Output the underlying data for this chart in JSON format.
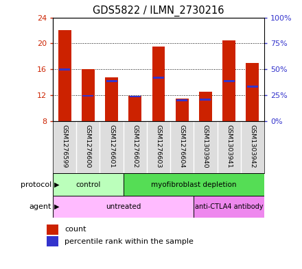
{
  "title": "GDS5822 / ILMN_2730216",
  "samples": [
    "GSM1276599",
    "GSM1276600",
    "GSM1276601",
    "GSM1276602",
    "GSM1276603",
    "GSM1276604",
    "GSM1303940",
    "GSM1303941",
    "GSM1303942"
  ],
  "count_values": [
    22.0,
    16.0,
    14.8,
    11.9,
    19.5,
    11.5,
    12.5,
    20.5,
    17.0
  ],
  "percentile_values": [
    16.0,
    11.9,
    14.2,
    11.8,
    14.7,
    11.2,
    11.3,
    14.2,
    13.3
  ],
  "bar_bottom": 8,
  "ylim": [
    8,
    24
  ],
  "yticks_left": [
    8,
    12,
    16,
    20,
    24
  ],
  "yticks_right": [
    0,
    25,
    50,
    75,
    100
  ],
  "right_ylim": [
    0,
    100
  ],
  "bar_color": "#cc2200",
  "blue_color": "#3333cc",
  "protocol_groups": [
    {
      "label": "control",
      "start": 0,
      "end": 3,
      "color": "#bbffbb"
    },
    {
      "label": "myofibroblast depletion",
      "start": 3,
      "end": 9,
      "color": "#55dd55"
    }
  ],
  "agent_groups": [
    {
      "label": "untreated",
      "start": 0,
      "end": 6,
      "color": "#ffbbff"
    },
    {
      "label": "anti-CTLA4 antibody",
      "start": 6,
      "end": 9,
      "color": "#ee88ee"
    }
  ],
  "left_tick_color": "#cc2200",
  "right_tick_color": "#3333cc",
  "figsize": [
    4.4,
    3.93
  ],
  "dpi": 100
}
